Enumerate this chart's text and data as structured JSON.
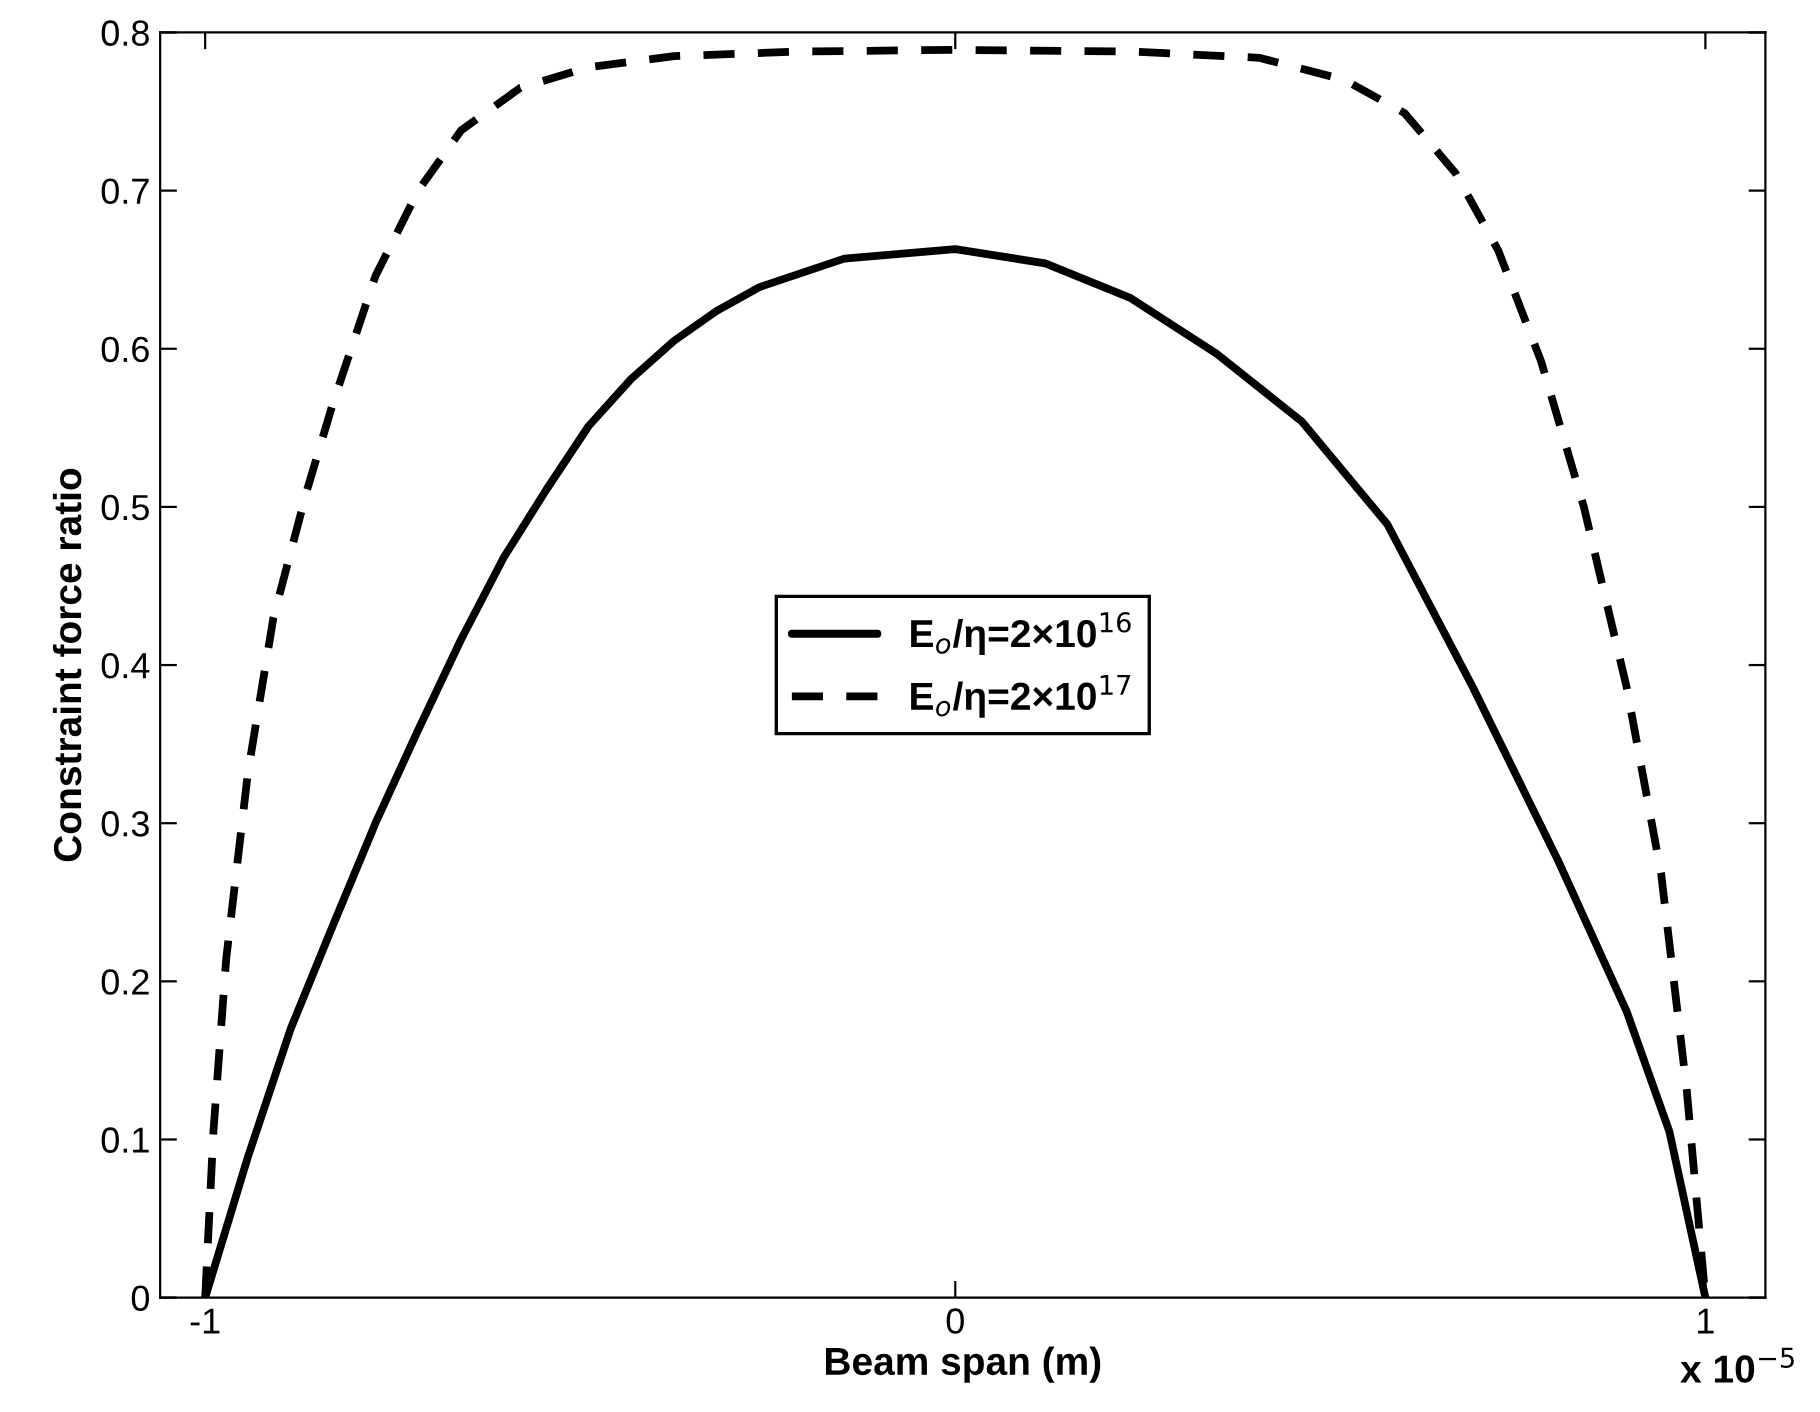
{
  "chart_data": {
    "type": "line",
    "xlabel": "Beam span (m)",
    "ylabel": "Constraint force ratio",
    "annotations": [
      "x 10$^{−5}$"
    ],
    "xlim": [
      -1.06,
      1.08
    ],
    "xticks": [
      -1,
      0,
      1
    ],
    "ylim": [
      0,
      0.8
    ],
    "yticks": [
      0,
      0.1,
      0.2,
      0.3,
      0.4,
      0.5,
      0.6,
      0.7,
      0.8
    ],
    "grid": false,
    "legend": "center",
    "marker": "none",
    "series": [
      {
        "name": "E$_{o}$/η=2×10$^{16}$",
        "color": "#000000",
        "line_style": "solid",
        "x": [
          -1,
          -0.943,
          -0.886,
          -0.83,
          -0.773,
          -0.716,
          -0.659,
          -0.602,
          -0.545,
          -0.489,
          -0.432,
          -0.375,
          -0.318,
          -0.261,
          -0.148,
          0,
          0.12,
          0.234,
          0.348,
          0.462,
          0.576,
          0.69,
          0.804,
          0.895,
          0.952,
          1.0
        ],
        "values": [
          0,
          0.089,
          0.17,
          0.235,
          0.3,
          0.359,
          0.416,
          0.468,
          0.511,
          0.551,
          0.581,
          0.605,
          0.624,
          0.639,
          0.657,
          0.663,
          0.654,
          0.632,
          0.597,
          0.554,
          0.489,
          0.386,
          0.276,
          0.181,
          0.105,
          0
        ]
      },
      {
        "name": "E$_{o}$/η=2×10$^{17}$",
        "color": "#000000",
        "line_style": "dashed",
        "x": [
          -1,
          -0.989,
          -0.972,
          -0.943,
          -0.909,
          -0.864,
          -0.83,
          -0.773,
          -0.716,
          -0.659,
          -0.58,
          -0.489,
          -0.375,
          -0.205,
          0,
          0.234,
          0.405,
          0.519,
          0.599,
          0.667,
          0.724,
          0.781,
          0.838,
          0.895,
          0.941,
          0.975,
          1.0
        ],
        "values": [
          0,
          0.105,
          0.214,
          0.332,
          0.43,
          0.511,
          0.565,
          0.646,
          0.7,
          0.738,
          0.765,
          0.778,
          0.785,
          0.788,
          0.789,
          0.788,
          0.784,
          0.77,
          0.749,
          0.711,
          0.662,
          0.592,
          0.5,
          0.386,
          0.268,
          0.132,
          0
        ]
      }
    ]
  }
}
